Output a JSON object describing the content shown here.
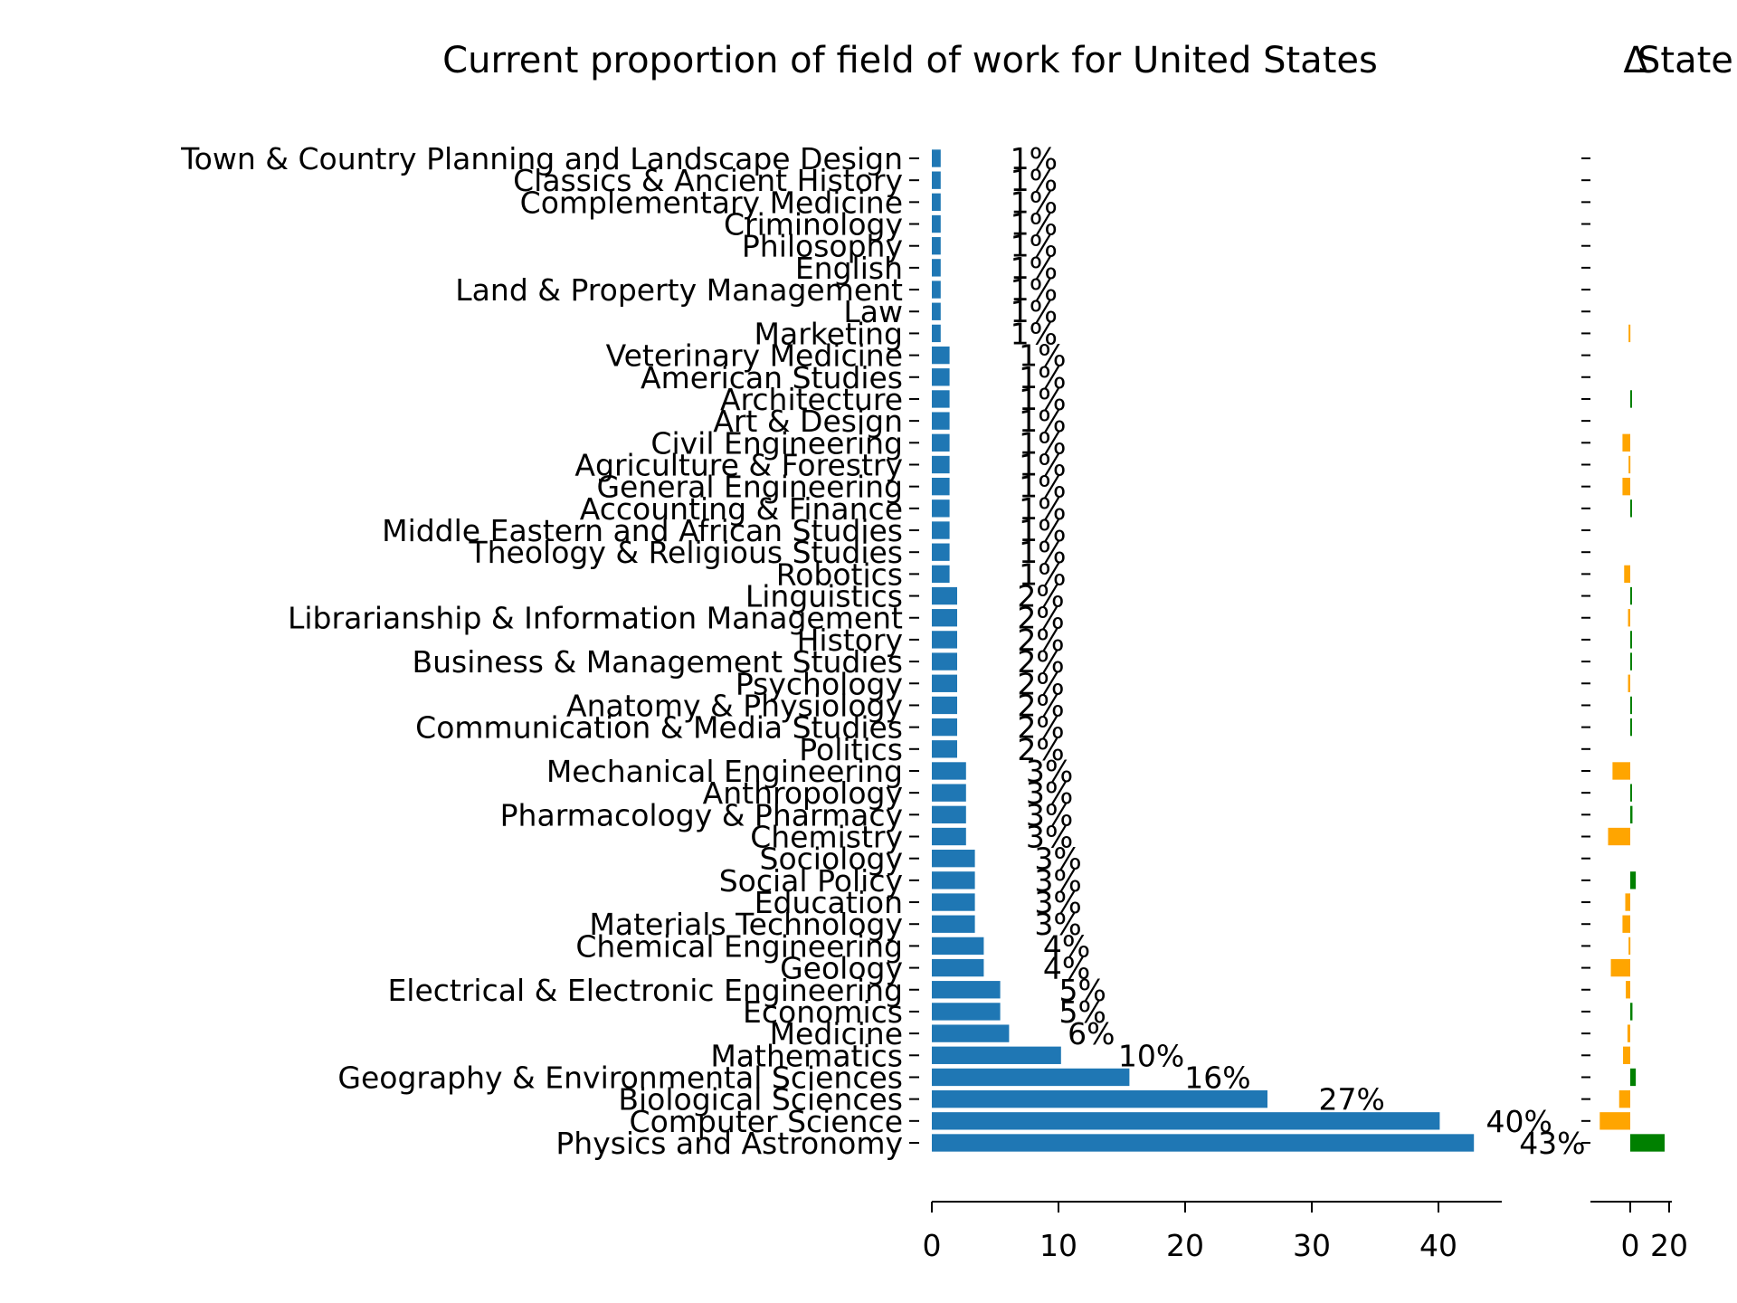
{
  "chart_data": [
    {
      "type": "bar",
      "orientation": "horizontal",
      "title": "Current proportion of field of work for United States",
      "categories": [
        "Town & Country Planning and Landscape Design",
        "Classics & Ancient History",
        "Complementary Medicine",
        "Criminology",
        "Philosophy",
        "English",
        "Land & Property Management",
        "Law",
        "Marketing",
        "Veterinary Medicine",
        "American Studies",
        "Architecture",
        "Art & Design",
        "Civil Engineering",
        "Agriculture & Forestry",
        "General Engineering",
        "Accounting & Finance",
        "Middle Eastern and African Studies",
        "Theology & Religious Studies",
        "Robotics",
        "Linguistics",
        "Librarianship & Information Management",
        "History",
        "Business & Management Studies",
        "Psychology",
        "Anatomy & Physiology",
        "Communication & Media Studies",
        "Politics",
        "Mechanical Engineering",
        "Anthropology",
        "Pharmacology & Pharmacy",
        "Chemistry",
        "Sociology",
        "Social Policy",
        "Education",
        "Materials Technology",
        "Chemical Engineering",
        "Geology",
        "Electrical & Electronic Engineering",
        "Economics",
        "Medicine",
        "Mathematics",
        "Geography & Environmental Sciences",
        "Biological Sciences",
        "Computer Science",
        "Physics and Astronomy"
      ],
      "values": [
        0.7,
        0.7,
        0.7,
        0.7,
        0.7,
        0.7,
        0.7,
        0.7,
        0.7,
        1.4,
        1.4,
        1.4,
        1.4,
        1.4,
        1.4,
        1.4,
        1.4,
        1.4,
        1.4,
        1.4,
        2.0,
        2.0,
        2.0,
        2.0,
        2.0,
        2.0,
        2.0,
        2.0,
        2.7,
        2.7,
        2.7,
        2.7,
        3.4,
        3.4,
        3.4,
        3.4,
        4.1,
        4.1,
        5.4,
        5.4,
        6.1,
        10.2,
        15.6,
        26.5,
        40.1,
        42.8
      ],
      "labels": [
        "1%",
        "1%",
        "1%",
        "1%",
        "1%",
        "1%",
        "1%",
        "1%",
        "1%",
        "1%",
        "1%",
        "1%",
        "1%",
        "1%",
        "1%",
        "1%",
        "1%",
        "1%",
        "1%",
        "1%",
        "2%",
        "2%",
        "2%",
        "2%",
        "2%",
        "2%",
        "2%",
        "2%",
        "3%",
        "3%",
        "3%",
        "3%",
        "3%",
        "3%",
        "3%",
        "3%",
        "4%",
        "4%",
        "5%",
        "5%",
        "6%",
        "10%",
        "16%",
        "27%",
        "40%",
        "43%"
      ],
      "color": "#1f77b4",
      "xlim": [
        0,
        45
      ],
      "xticks": [
        "0",
        "10",
        "20",
        "30",
        "40"
      ],
      "xlabel": "",
      "ylabel": ""
    },
    {
      "type": "bar",
      "orientation": "horizontal",
      "title": "Δ",
      "title_partial": "State",
      "values": [
        0,
        0,
        0,
        0,
        0,
        0,
        0,
        0,
        -0.3,
        0,
        0,
        0.15,
        0,
        -1.4,
        -0.3,
        -1.4,
        0.15,
        0,
        0,
        -1.1,
        0.15,
        -0.4,
        0.2,
        0.15,
        -0.4,
        0.2,
        0.2,
        0,
        -3.2,
        0.15,
        0.4,
        -4.0,
        0,
        1.0,
        -0.9,
        -1.4,
        -0.3,
        -3.5,
        -0.8,
        0.4,
        -0.5,
        -1.3,
        1.0,
        -2.0,
        -5.5,
        6.2
      ],
      "positive_color": "#008000",
      "negative_color": "#ffa500",
      "xlim": [
        -6.5,
        6.5
      ],
      "xticks": [
        "0",
        "20"
      ]
    }
  ]
}
